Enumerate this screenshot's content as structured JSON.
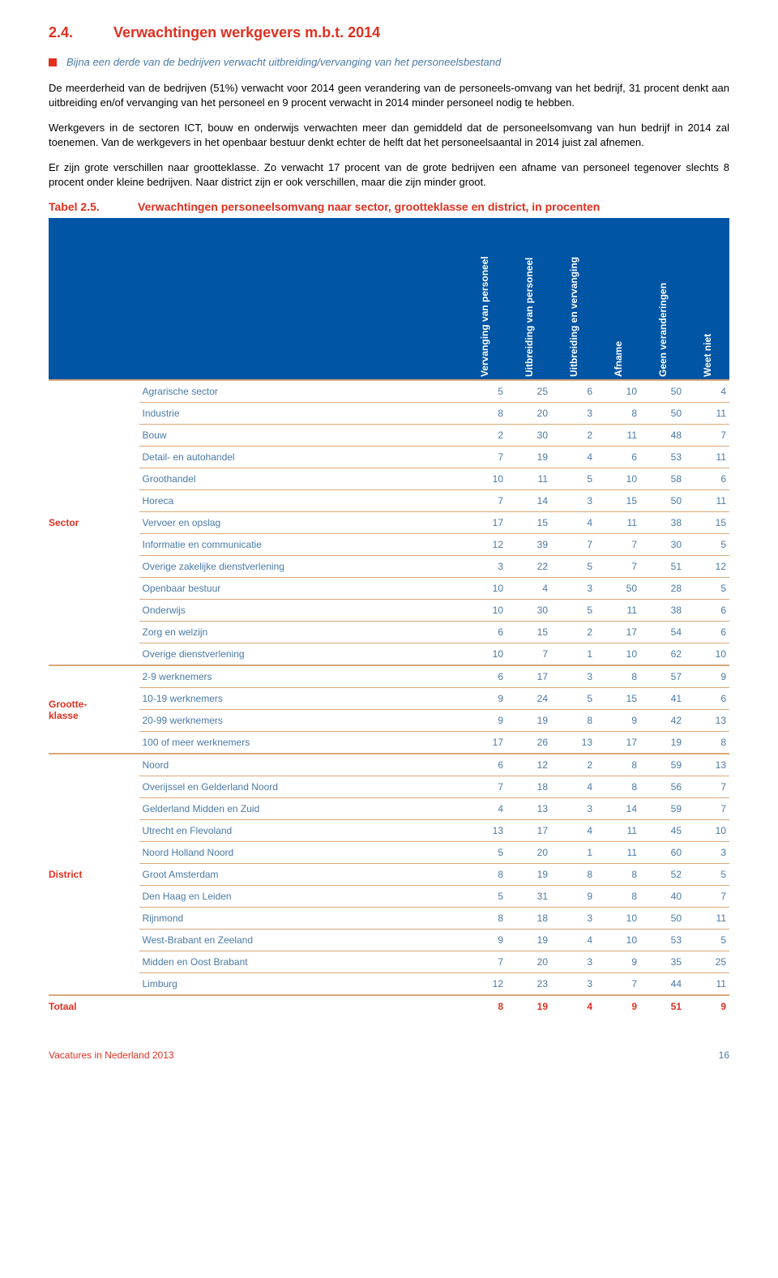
{
  "heading": {
    "num": "2.4.",
    "title": "Verwachtingen werkgevers m.b.t. 2014"
  },
  "bullet": "Bijna een derde  van de bedrijven verwacht uitbreiding/vervanging van het personeelsbestand",
  "paragraphs": [
    "De meerderheid van de bedrijven (51%) verwacht voor 2014 geen verandering van de personeels-omvang van het bedrijf,  31 procent denkt aan uitbreiding en/of vervanging van het personeel en 9 procent verwacht in 2014 minder personeel nodig te hebben.",
    "Werkgevers in de sectoren ICT, bouw en onderwijs verwachten meer dan gemiddeld dat de personeelsomvang van hun bedrijf in 2014 zal toenemen. Van de werkgevers in het openbaar bestuur denkt echter de helft dat het personeelsaantal in 2014 juist zal afnemen.",
    "Er zijn grote verschillen naar grootteklasse. Zo verwacht 17 procent van de grote bedrijven een afname van personeel tegenover slechts 8 procent onder kleine bedrijven. Naar district zijn er ook verschillen, maar die zijn minder groot."
  ],
  "table_caption": {
    "label": "Tabel 2.5.",
    "desc": "Verwachtingen personeelsomvang naar sector, grootteklasse en district, in procenten"
  },
  "columns": [
    "Vervanging van personeel",
    "Uitbreiding van personeel",
    "Uitbreiding en vervanging",
    "Afname",
    "Geen veranderingen",
    "Weet niet"
  ],
  "groups": [
    {
      "label": "Sector",
      "rows": [
        {
          "name": "Agrarische sector",
          "v": [
            5,
            25,
            6,
            10,
            50,
            4
          ]
        },
        {
          "name": "Industrie",
          "v": [
            8,
            20,
            3,
            8,
            50,
            11
          ]
        },
        {
          "name": "Bouw",
          "v": [
            2,
            30,
            2,
            11,
            48,
            7
          ]
        },
        {
          "name": "Detail- en autohandel",
          "v": [
            7,
            19,
            4,
            6,
            53,
            11
          ]
        },
        {
          "name": "Groothandel",
          "v": [
            10,
            11,
            5,
            10,
            58,
            6
          ]
        },
        {
          "name": "Horeca",
          "v": [
            7,
            14,
            3,
            15,
            50,
            11
          ]
        },
        {
          "name": "Vervoer en opslag",
          "v": [
            17,
            15,
            4,
            11,
            38,
            15
          ]
        },
        {
          "name": "Informatie en communicatie",
          "v": [
            12,
            39,
            7,
            7,
            30,
            5
          ]
        },
        {
          "name": "Overige zakelijke dienstverlening",
          "v": [
            3,
            22,
            5,
            7,
            51,
            12
          ]
        },
        {
          "name": "Openbaar bestuur",
          "v": [
            10,
            4,
            3,
            50,
            28,
            5
          ]
        },
        {
          "name": "Onderwijs",
          "v": [
            10,
            30,
            5,
            11,
            38,
            6
          ]
        },
        {
          "name": "Zorg en welzijn",
          "v": [
            6,
            15,
            2,
            17,
            54,
            6
          ]
        },
        {
          "name": "Overige dienstverlening",
          "v": [
            10,
            7,
            1,
            10,
            62,
            10
          ]
        }
      ]
    },
    {
      "label": "Grootte-klasse",
      "rows": [
        {
          "name": "2-9 werknemers",
          "v": [
            6,
            17,
            3,
            8,
            57,
            9
          ]
        },
        {
          "name": "10-19 werknemers",
          "v": [
            9,
            24,
            5,
            15,
            41,
            6
          ]
        },
        {
          "name": "20-99 werknemers",
          "v": [
            9,
            19,
            8,
            9,
            42,
            13
          ]
        },
        {
          "name": "100 of meer werknemers",
          "v": [
            17,
            26,
            13,
            17,
            19,
            8
          ]
        }
      ]
    },
    {
      "label": "District",
      "rows": [
        {
          "name": "Noord",
          "v": [
            6,
            12,
            2,
            8,
            59,
            13
          ]
        },
        {
          "name": "Overijssel en Gelderland Noord",
          "v": [
            7,
            18,
            4,
            8,
            56,
            7
          ]
        },
        {
          "name": "Gelderland Midden en Zuid",
          "v": [
            4,
            13,
            3,
            14,
            59,
            7
          ]
        },
        {
          "name": "Utrecht en Flevoland",
          "v": [
            13,
            17,
            4,
            11,
            45,
            10
          ]
        },
        {
          "name": "Noord Holland Noord",
          "v": [
            5,
            20,
            1,
            11,
            60,
            3
          ]
        },
        {
          "name": "Groot Amsterdam",
          "v": [
            8,
            19,
            8,
            8,
            52,
            5
          ]
        },
        {
          "name": "Den Haag en Leiden",
          "v": [
            5,
            31,
            9,
            8,
            40,
            7
          ]
        },
        {
          "name": "Rijnmond",
          "v": [
            8,
            18,
            3,
            10,
            50,
            11
          ]
        },
        {
          "name": "West-Brabant en Zeeland",
          "v": [
            9,
            19,
            4,
            10,
            53,
            5
          ]
        },
        {
          "name": "Midden en Oost Brabant",
          "v": [
            7,
            20,
            3,
            9,
            35,
            25
          ]
        },
        {
          "name": "Limburg",
          "v": [
            12,
            23,
            3,
            7,
            44,
            11
          ]
        }
      ]
    }
  ],
  "total": {
    "label": "Totaal",
    "v": [
      8,
      19,
      4,
      9,
      51,
      9
    ]
  },
  "footer": {
    "title": "Vacatures in Nederland 2013",
    "page": "16"
  },
  "colors": {
    "accent_red": "#e03020",
    "accent_blue": "#0055a5",
    "text_blue": "#4a7aa6",
    "divider": "#d9a87a"
  }
}
